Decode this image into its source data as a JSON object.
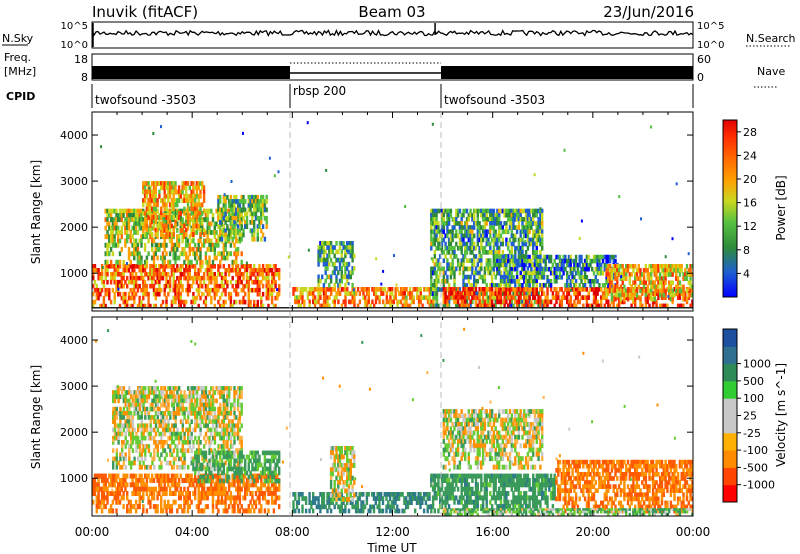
{
  "header": {
    "station": "Inuvik (fitACF)",
    "beam": "Beam 03",
    "date": "23/Jun/2016"
  },
  "top_panels": {
    "nsky_label": "N.Sky",
    "nsky_ticks": [
      "10^5",
      "10^0"
    ],
    "nsearch_label": "N.Search",
    "freq_label_1": "Freq.",
    "freq_label_2": "[MHz]",
    "freq_ticks": [
      "18",
      "8"
    ],
    "nave_label": "Nave",
    "nave_ticks": [
      "60",
      "0"
    ],
    "cpid_label": "CPID",
    "cpid_segments": [
      {
        "label": "twofsound -3503",
        "start": 0,
        "end": 8
      },
      {
        "label": "rbsp 200",
        "start": 8,
        "end": 14
      },
      {
        "label": "twofsound -3503",
        "start": 14,
        "end": 24
      }
    ]
  },
  "colors": {
    "power_scale": [
      "#0000ff",
      "#1f5fd0",
      "#2e8b3a",
      "#55c040",
      "#c8d820",
      "#ffa000",
      "#ff6a00",
      "#ff3000",
      "#e00000"
    ],
    "velocity_scale": [
      "#ff0000",
      "#ff4500",
      "#ff8c00",
      "#ffb000",
      "#c8c8c8",
      "#c8c8c8",
      "#32cd32",
      "#2e8b57",
      "#2f6f8f",
      "#1e50a0"
    ]
  },
  "chart_data": [
    {
      "type": "heatmap",
      "name": "power",
      "xlabel": "Time UT",
      "ylabel": "Slant Range [km]",
      "x_range_hours": [
        0,
        24
      ],
      "xticks": [
        "00:00",
        "04:00",
        "08:00",
        "12:00",
        "16:00",
        "20:00",
        "00:00"
      ],
      "ylim_km": [
        180,
        4500
      ],
      "yticks": [
        1000,
        2000,
        3000,
        4000
      ],
      "colorbar_label": "Power [dB]",
      "colorbar_ticks": [
        4,
        8,
        12,
        16,
        20,
        24,
        28
      ],
      "colorbar_range": [
        0,
        30
      ],
      "regions": [
        {
          "t0": 0.0,
          "t1": 7.5,
          "r0": 250,
          "r1": 1200,
          "level": 22
        },
        {
          "t0": 0.5,
          "t1": 6.0,
          "r0": 1200,
          "r1": 2400,
          "level": 14
        },
        {
          "t0": 2.0,
          "t1": 4.5,
          "r0": 1800,
          "r1": 3000,
          "level": 18
        },
        {
          "t0": 5.0,
          "t1": 7.0,
          "r0": 1700,
          "r1": 2700,
          "level": 12
        },
        {
          "t0": 8.0,
          "t1": 13.8,
          "r0": 250,
          "r1": 700,
          "level": 20
        },
        {
          "t0": 9.0,
          "t1": 10.5,
          "r0": 700,
          "r1": 1700,
          "level": 10
        },
        {
          "t0": 13.5,
          "t1": 18.0,
          "r0": 250,
          "r1": 2400,
          "level": 10
        },
        {
          "t0": 14.0,
          "t1": 24.0,
          "r0": 250,
          "r1": 700,
          "level": 24
        },
        {
          "t0": 16.0,
          "t1": 21.0,
          "r0": 700,
          "r1": 1400,
          "level": 8
        },
        {
          "t0": 20.5,
          "t1": 24.0,
          "r0": 400,
          "r1": 1200,
          "level": 18
        }
      ]
    },
    {
      "type": "heatmap",
      "name": "velocity",
      "xlabel": "Time UT",
      "ylabel": "Slant Range [km]",
      "x_range_hours": [
        0,
        24
      ],
      "xticks": [
        "00:00",
        "04:00",
        "08:00",
        "12:00",
        "16:00",
        "20:00",
        "00:00"
      ],
      "ylim_km": [
        180,
        4500
      ],
      "yticks": [
        1000,
        2000,
        3000,
        4000
      ],
      "colorbar_label": "Velocity [m s^-1]",
      "colorbar_ticks": [
        -1000,
        -500,
        -100,
        -25,
        25,
        100,
        500,
        1000
      ],
      "regions": [
        {
          "t0": 0.0,
          "t1": 7.5,
          "r0": 250,
          "r1": 1100,
          "level": -300
        },
        {
          "t0": 0.8,
          "t1": 6.0,
          "r0": 1200,
          "r1": 3000,
          "level": 0
        },
        {
          "t0": 4.0,
          "t1": 7.5,
          "r0": 900,
          "r1": 1600,
          "level": 150
        },
        {
          "t0": 8.0,
          "t1": 13.5,
          "r0": 250,
          "r1": 700,
          "level": 300
        },
        {
          "t0": 9.5,
          "t1": 10.5,
          "r0": 500,
          "r1": 1700,
          "level": 0
        },
        {
          "t0": 13.5,
          "t1": 18.5,
          "r0": 250,
          "r1": 1100,
          "level": 200
        },
        {
          "t0": 14.0,
          "t1": 18.0,
          "r0": 1200,
          "r1": 2500,
          "level": 0
        },
        {
          "t0": 18.5,
          "t1": 24.0,
          "r0": 250,
          "r1": 1400,
          "level": -300
        },
        {
          "t0": 14.0,
          "t1": 24.0,
          "r0": 200,
          "r1": 350,
          "level": 80
        }
      ]
    }
  ]
}
